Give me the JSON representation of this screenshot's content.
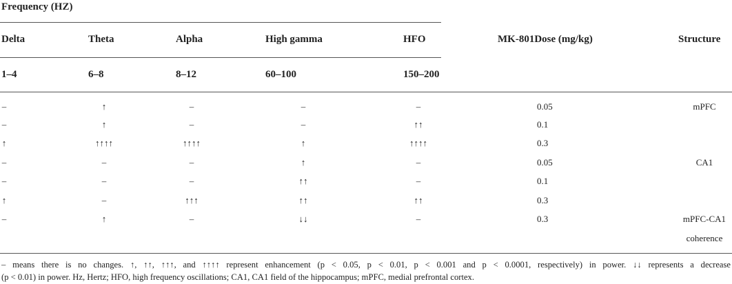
{
  "header": {
    "group": "Frequency (HZ)",
    "dose": "MK-801Dose (mg/kg)",
    "structure": "Structure"
  },
  "bands": [
    {
      "name": "Delta",
      "range": "1–4"
    },
    {
      "name": "Theta",
      "range": "6–8"
    },
    {
      "name": "Alpha",
      "range": "8–12"
    },
    {
      "name": "High gamma",
      "range": "60–100"
    },
    {
      "name": "HFO",
      "range": "150–200"
    }
  ],
  "rows": [
    {
      "cells": [
        "–",
        "↑",
        "–",
        "–",
        "–"
      ],
      "dose": 0.05,
      "structure": "mPFC"
    },
    {
      "cells": [
        "–",
        "↑",
        "–",
        "–",
        "↑↑"
      ],
      "dose": 0.1
    },
    {
      "cells": [
        "↑",
        "↑↑↑↑",
        "↑↑↑↑",
        "↑",
        "↑↑↑↑"
      ],
      "dose": 0.3
    },
    {
      "cells": [
        "–",
        "–",
        "–",
        "↑",
        "–"
      ],
      "dose": 0.05,
      "structure": "CA1"
    },
    {
      "cells": [
        "–",
        "–",
        "–",
        "↑↑",
        "–"
      ],
      "dose": 0.1
    },
    {
      "cells": [
        "↑",
        "–",
        "↑↑↑",
        "↑↑",
        "↑↑"
      ],
      "dose": 0.3
    },
    {
      "cells": [
        "–",
        "↑",
        "–",
        "↓↓",
        "–"
      ],
      "dose": 0.3,
      "structure": "mPFC-CA1 coherence"
    }
  ],
  "footnote": [
    "– means there is no changes. ↑, ↑↑, ↑↑↑, and ↑↑↑↑ represent enhancement (p < 0.05, p < 0.01, p < 0.001 and p < 0.0001, respectively) in power. ↓↓ represents a decrease",
    "(p < 0.01) in power. Hz, Hertz; HFO, high frequency oscillations; CA1, CA1 field of the hippocampus; mPFC, medial prefrontal cortex."
  ]
}
